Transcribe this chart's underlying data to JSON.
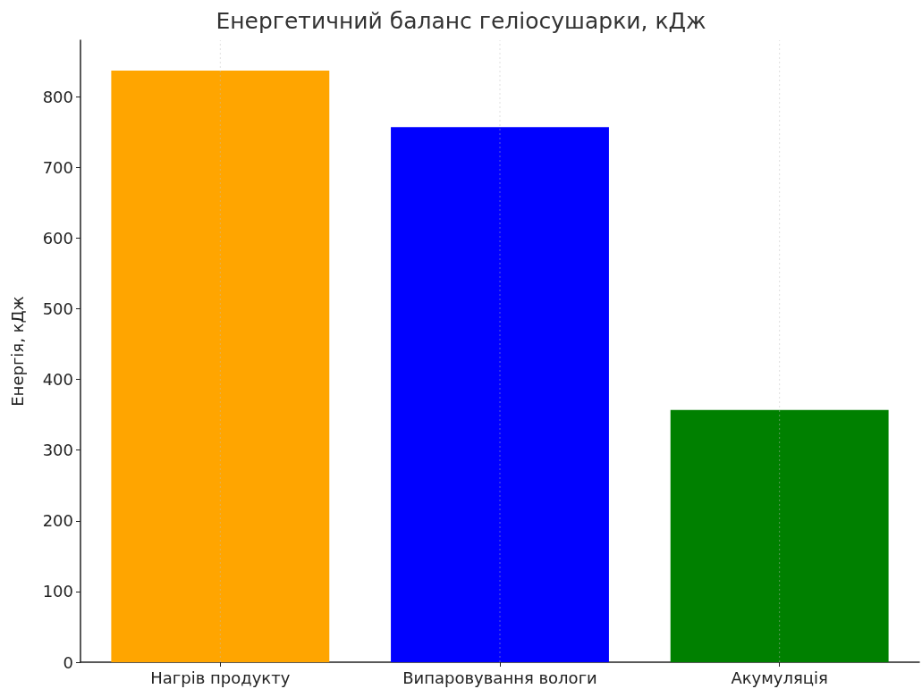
{
  "chart_data": {
    "type": "bar",
    "title": "Енергетичний баланс геліосушарки, кДж",
    "ylabel": "Енергія, кДж",
    "categories": [
      "Нагрів продукту",
      "Випаровування вологи",
      "Акумуляція"
    ],
    "values": [
      837,
      757,
      357
    ],
    "colors": [
      "#ffa500",
      "#0000ff",
      "#008000"
    ],
    "ylim": [
      0,
      880
    ],
    "yticks": [
      0,
      100,
      200,
      300,
      400,
      500,
      600,
      700,
      800
    ],
    "grid": "x"
  }
}
